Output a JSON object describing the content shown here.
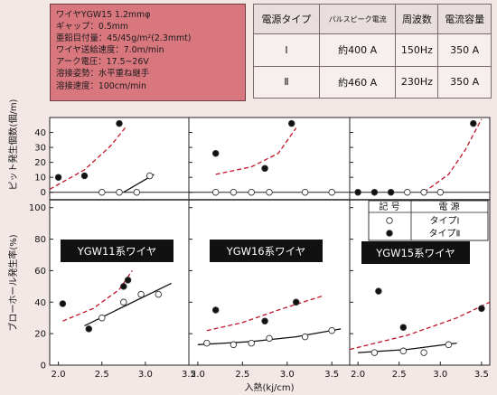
{
  "conditions": {
    "lines": [
      "ワイヤYGW15 1.2mmφ",
      "ギャップ：0.5mm",
      "亜鉛目付量：45/45g/m²(2.3mmt)",
      "ワイヤ送給速度：7.0m/min",
      "アーク電圧：17.5~26V",
      "溶接姿勢：水平重ね継手",
      "溶接速度：100cm/min"
    ]
  },
  "power_table": {
    "headers": [
      "電源タイプ",
      "パルスピーク電流",
      "周波数",
      "電流容量"
    ],
    "rows": [
      [
        "Ⅰ",
        "約400 A",
        "150Hz",
        "350 A"
      ],
      [
        "Ⅱ",
        "約460 A",
        "230Hz",
        "350 A"
      ]
    ]
  },
  "legend": {
    "header_symbol": "記 号",
    "header_source": "電 源",
    "entries": [
      {
        "marker": "open",
        "label": "タイプⅠ"
      },
      {
        "marker": "filled",
        "label": "タイプⅡ"
      }
    ]
  },
  "axes": {
    "xlabel": "入熱(kj/cm)",
    "ylabel_top": "ピット発生個数(個/m)",
    "ylabel_bottom": "ブローホール発生率(%)",
    "x_ticks": [
      2.0,
      2.5,
      3.0,
      3.5
    ]
  },
  "colors": {
    "type_II_curve": "#c0152a",
    "type_I_curve": "#111111",
    "label_box_bg": "#111111",
    "conditions_bg": "#d9777f"
  },
  "chart_data": [
    {
      "type": "scatter",
      "panel": "top-left",
      "title": "",
      "ylabel": "ピット発生個数(個/m)",
      "xlim": [
        1.9,
        3.5
      ],
      "ylim": [
        -5,
        50
      ],
      "y_ticks": [
        0,
        10,
        20,
        30,
        40
      ],
      "series": [
        {
          "name": "タイプⅠ",
          "marker": "open",
          "points": [
            [
              2.5,
              0
            ],
            [
              2.7,
              0
            ],
            [
              2.9,
              0
            ],
            [
              3.05,
              11
            ]
          ],
          "trend": [
            [
              2.75,
              0
            ],
            [
              3.1,
              12
            ]
          ]
        },
        {
          "name": "タイプⅡ",
          "marker": "filled",
          "points": [
            [
              2.0,
              10
            ],
            [
              2.3,
              11
            ],
            [
              2.7,
              46
            ]
          ],
          "trend": [
            [
              1.9,
              2
            ],
            [
              2.3,
              15
            ],
            [
              2.6,
              31
            ],
            [
              2.78,
              44
            ]
          ]
        }
      ]
    },
    {
      "type": "scatter",
      "panel": "top-middle",
      "title": "",
      "xlim": [
        1.9,
        3.7
      ],
      "ylim": [
        -5,
        50
      ],
      "y_ticks": [
        0,
        10,
        20,
        30,
        40
      ],
      "series": [
        {
          "name": "タイプⅠ",
          "marker": "open",
          "points": [
            [
              2.2,
              0
            ],
            [
              2.4,
              0
            ],
            [
              2.6,
              0
            ],
            [
              2.8,
              0
            ],
            [
              3.2,
              0
            ],
            [
              3.5,
              0
            ]
          ]
        },
        {
          "name": "タイプⅡ",
          "marker": "filled",
          "points": [
            [
              2.2,
              26
            ],
            [
              2.75,
              16
            ],
            [
              3.05,
              46
            ]
          ],
          "trend": [
            [
              2.2,
              12
            ],
            [
              2.6,
              17
            ],
            [
              2.9,
              26
            ],
            [
              3.1,
              43
            ]
          ]
        }
      ]
    },
    {
      "type": "scatter",
      "panel": "top-right",
      "title": "",
      "xlim": [
        1.9,
        3.6
      ],
      "ylim": [
        -5,
        50
      ],
      "y_ticks": [
        0,
        10,
        20,
        30,
        40
      ],
      "series": [
        {
          "name": "タイプⅠ",
          "marker": "open",
          "points": [
            [
              2.6,
              0
            ],
            [
              2.8,
              0
            ],
            [
              3.0,
              0
            ]
          ]
        },
        {
          "name": "タイプⅡ",
          "marker": "filled",
          "points": [
            [
              2.0,
              0
            ],
            [
              2.2,
              0
            ],
            [
              2.4,
              0
            ],
            [
              3.4,
              46
            ]
          ],
          "trend": [
            [
              2.8,
              0
            ],
            [
              3.1,
              12
            ],
            [
              3.3,
              28
            ],
            [
              3.5,
              49
            ]
          ]
        }
      ]
    },
    {
      "type": "scatter",
      "panel": "bottom-left",
      "title": "YGW11系ワイヤ",
      "ylabel": "ブローホール発生率(%)",
      "xlim": [
        1.9,
        3.5
      ],
      "ylim": [
        0,
        105
      ],
      "y_ticks": [
        0,
        20,
        40,
        60,
        80,
        100
      ],
      "series": [
        {
          "name": "タイプⅠ",
          "marker": "open",
          "points": [
            [
              2.5,
              30
            ],
            [
              2.75,
              40
            ],
            [
              2.95,
              45
            ],
            [
              3.15,
              45
            ]
          ],
          "trend": [
            [
              2.3,
              25
            ],
            [
              3.3,
              52
            ]
          ]
        },
        {
          "name": "タイプⅡ",
          "marker": "filled",
          "points": [
            [
              2.05,
              39
            ],
            [
              2.35,
              23
            ],
            [
              2.75,
              50
            ],
            [
              2.8,
              54
            ]
          ],
          "trend": [
            [
              2.05,
              28
            ],
            [
              2.4,
              36
            ],
            [
              2.7,
              48
            ],
            [
              2.85,
              60
            ]
          ]
        }
      ]
    },
    {
      "type": "scatter",
      "panel": "bottom-middle",
      "title": "YGW16系ワイヤ",
      "xlim": [
        1.9,
        3.7
      ],
      "ylim": [
        0,
        105
      ],
      "y_ticks": [
        0,
        20,
        40,
        60,
        80,
        100
      ],
      "series": [
        {
          "name": "タイプⅠ",
          "marker": "open",
          "points": [
            [
              2.1,
              14
            ],
            [
              2.4,
              13
            ],
            [
              2.6,
              14
            ],
            [
              2.8,
              17
            ],
            [
              3.2,
              18
            ],
            [
              3.5,
              22
            ]
          ],
          "trend": [
            [
              2.0,
              13
            ],
            [
              2.6,
              15
            ],
            [
              3.1,
              18
            ],
            [
              3.6,
              23
            ]
          ]
        },
        {
          "name": "タイプⅡ",
          "marker": "filled",
          "points": [
            [
              2.2,
              35
            ],
            [
              2.75,
              28
            ],
            [
              3.1,
              40
            ]
          ],
          "trend": [
            [
              2.1,
              22
            ],
            [
              2.5,
              27
            ],
            [
              2.9,
              35
            ],
            [
              3.4,
              44
            ]
          ]
        }
      ]
    },
    {
      "type": "scatter",
      "panel": "bottom-right",
      "title": "YGW15系ワイヤ",
      "xlim": [
        1.9,
        3.6
      ],
      "ylim": [
        0,
        105
      ],
      "y_ticks": [
        0,
        20,
        40,
        60,
        80,
        100
      ],
      "series": [
        {
          "name": "タイプⅠ",
          "marker": "open",
          "points": [
            [
              2.2,
              8
            ],
            [
              2.55,
              9
            ],
            [
              2.8,
              8
            ],
            [
              3.1,
              13
            ]
          ],
          "trend": [
            [
              2.0,
              8
            ],
            [
              2.6,
              10
            ],
            [
              3.2,
              14
            ]
          ]
        },
        {
          "name": "タイプⅡ",
          "marker": "filled",
          "points": [
            [
              2.25,
              47
            ],
            [
              2.55,
              24
            ],
            [
              3.5,
              36
            ]
          ],
          "trend": [
            [
              1.9,
              10
            ],
            [
              2.6,
              19
            ],
            [
              3.2,
              30
            ],
            [
              3.6,
              40
            ]
          ]
        }
      ]
    }
  ]
}
